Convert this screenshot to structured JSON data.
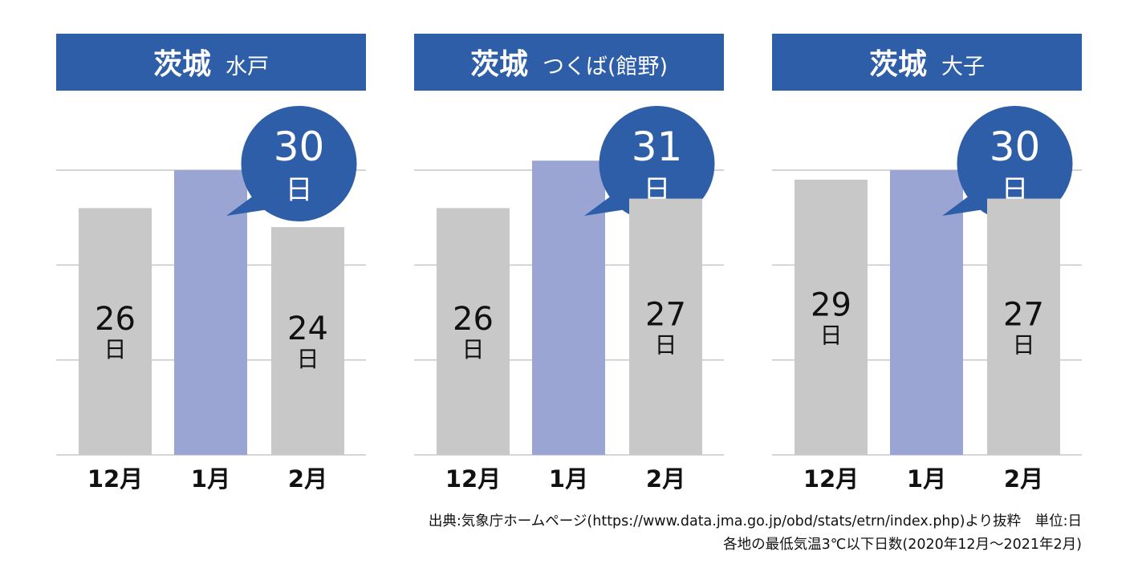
{
  "chart_data": {
    "type": "bar",
    "ylim": [
      0,
      36
    ],
    "gridlines": [
      10,
      20,
      30
    ],
    "unit_label": "日",
    "colors": {
      "title_bar": "#2f5ea8",
      "bar": "#c8c8c8",
      "highlight_bar": "#9aa5d3",
      "bubble": "#2f5ea8",
      "grid": "#c8c8c8"
    },
    "panels": [
      {
        "title": "茨城",
        "location": "水戸",
        "categories": [
          "12月",
          "1月",
          "2月"
        ],
        "values": [
          26,
          30,
          24
        ],
        "highlight_index": 1
      },
      {
        "title": "茨城",
        "location": "つくば(館野)",
        "categories": [
          "12月",
          "1月",
          "2月"
        ],
        "values": [
          26,
          31,
          27
        ],
        "highlight_index": 1
      },
      {
        "title": "茨城",
        "location": "大子",
        "categories": [
          "12月",
          "1月",
          "2月"
        ],
        "values": [
          29,
          30,
          27
        ],
        "highlight_index": 1
      }
    ]
  },
  "footer": {
    "source": "出典:気象庁ホームページ(https://www.data.jma.go.jp/obd/stats/etrn/index.php)より抜粋　単位:日",
    "caption": "各地の最低気温3℃以下日数(2020年12月〜2021年2月)"
  }
}
